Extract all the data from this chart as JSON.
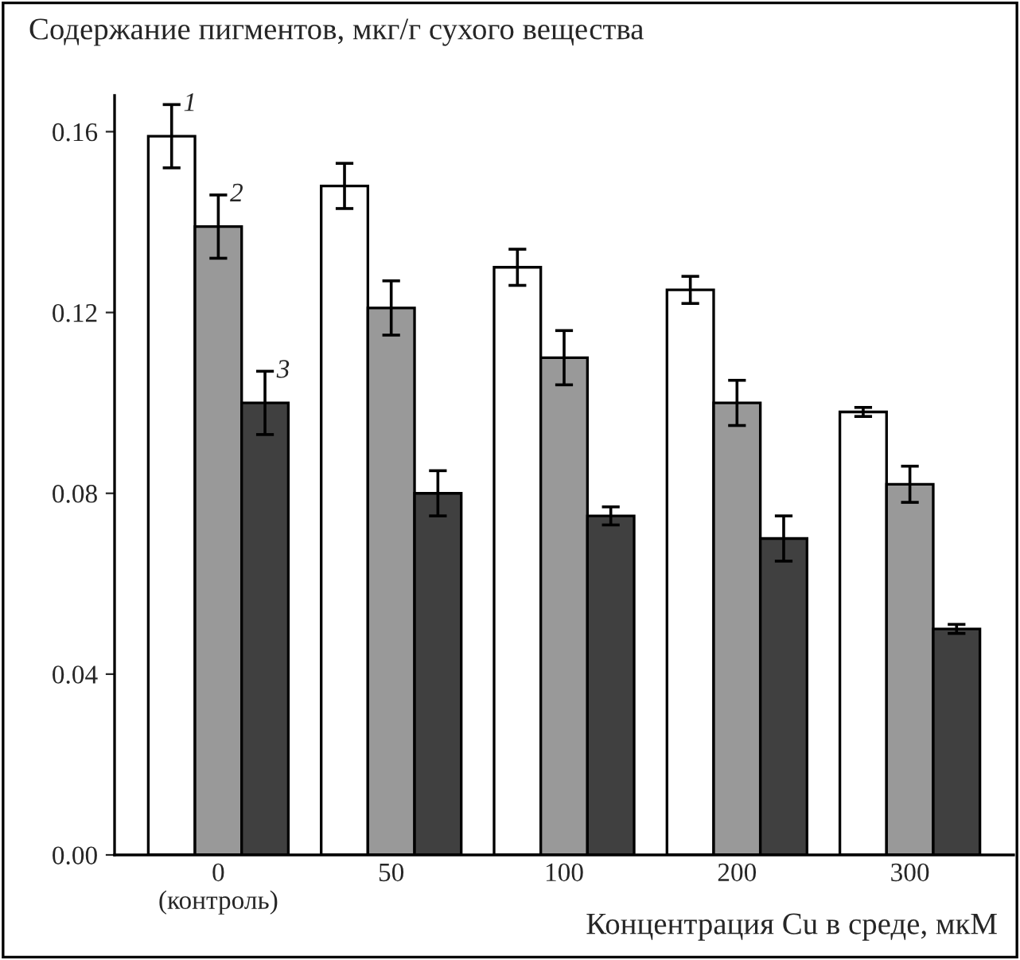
{
  "chart_data": {
    "type": "bar",
    "ylabel": "Содержание пигментов, мкг/г сухого вещества",
    "xlabel": "Концентрация Cu в среде, мкМ",
    "categories": [
      "0\n(контроль)",
      "50",
      "100",
      "200",
      "300"
    ],
    "series": [
      {
        "name": "1",
        "color": "#ffffff",
        "values": [
          0.159,
          0.148,
          0.13,
          0.125,
          0.098
        ],
        "errors": [
          0.007,
          0.005,
          0.004,
          0.003,
          0.001
        ]
      },
      {
        "name": "2",
        "color": "#999999",
        "values": [
          0.139,
          0.121,
          0.11,
          0.1,
          0.082
        ],
        "errors": [
          0.007,
          0.006,
          0.006,
          0.005,
          0.004
        ]
      },
      {
        "name": "3",
        "color": "#404040",
        "values": [
          0.1,
          0.08,
          0.075,
          0.07,
          0.05
        ],
        "errors": [
          0.007,
          0.005,
          0.002,
          0.005,
          0.001
        ]
      }
    ],
    "ylim": [
      0,
      0.168
    ],
    "yticks": [
      {
        "value": 0,
        "label": "0.00"
      },
      {
        "value": 0.04,
        "label": "0.04"
      },
      {
        "value": 0.08,
        "label": "0.08"
      },
      {
        "value": 0.12,
        "label": "0.12"
      },
      {
        "value": 0.16,
        "label": "0.16"
      }
    ],
    "grid": false,
    "legend": false
  }
}
